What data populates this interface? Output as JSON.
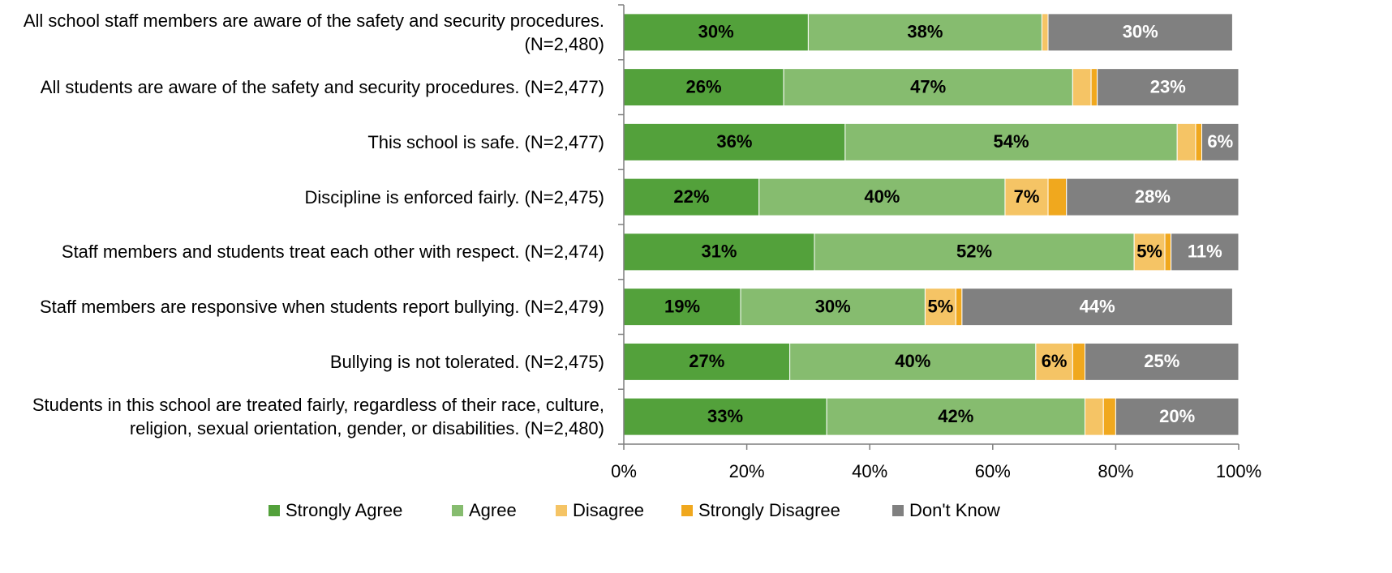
{
  "chart_data": {
    "type": "stacked_barh",
    "categories": [
      "All school staff members are aware of the safety and security procedures. (N=2,480)",
      "All students are aware of the safety and security procedures. (N=2,477)",
      "This school is safe. (N=2,477)",
      "Discipline is enforced fairly. (N=2,475)",
      "Staff members and students treat each other with respect. (N=2,474)",
      "Staff members are responsive when students report bullying. (N=2,479)",
      "Bullying is not tolerated. (N=2,475)",
      "Students in this school are treated fairly, regardless of their race, culture, religion, sexual orientation, gender, or disabilities. (N=2,480)"
    ],
    "series": [
      {
        "name": "Strongly Agree",
        "color": "#53a13b",
        "label_color": "#000000",
        "values": [
          30,
          26,
          36,
          22,
          31,
          19,
          27,
          33
        ],
        "value_labels": [
          "30%",
          "26%",
          "36%",
          "22%",
          "31%",
          "19%",
          "27%",
          "33%"
        ]
      },
      {
        "name": "Agree",
        "color": "#86bc6f",
        "label_color": "#000000",
        "values": [
          38,
          47,
          54,
          40,
          52,
          30,
          40,
          42
        ],
        "value_labels": [
          "38%",
          "47%",
          "54%",
          "40%",
          "52%",
          "30%",
          "40%",
          "42%"
        ]
      },
      {
        "name": "Disagree",
        "color": "#f5c465",
        "label_color": "#000000",
        "values": [
          1,
          3,
          3,
          7,
          5,
          5,
          6,
          3
        ],
        "value_labels": [
          null,
          null,
          null,
          "7%",
          "5%",
          "5%",
          "6%",
          null
        ]
      },
      {
        "name": "Strongly Disagree",
        "color": "#f0a81e",
        "label_color": "#000000",
        "values": [
          0,
          1,
          1,
          3,
          1,
          1,
          2,
          2
        ],
        "value_labels": [
          null,
          null,
          null,
          null,
          null,
          null,
          null,
          null
        ]
      },
      {
        "name": "Don't Know",
        "color": "#808080",
        "label_color": "#ffffff",
        "values": [
          30,
          23,
          6,
          28,
          11,
          44,
          25,
          20
        ],
        "value_labels": [
          "30%",
          "23%",
          "6%",
          "28%",
          "11%",
          "44%",
          "25%",
          "20%"
        ]
      }
    ],
    "xlim": [
      0,
      100
    ],
    "xticks": [
      {
        "value": 0,
        "label": "0%"
      },
      {
        "value": 20,
        "label": "20%"
      },
      {
        "value": 40,
        "label": "40%"
      },
      {
        "value": 60,
        "label": "60%"
      },
      {
        "value": 80,
        "label": "80%"
      },
      {
        "value": 100,
        "label": "100%"
      }
    ],
    "legend": "bottom"
  }
}
